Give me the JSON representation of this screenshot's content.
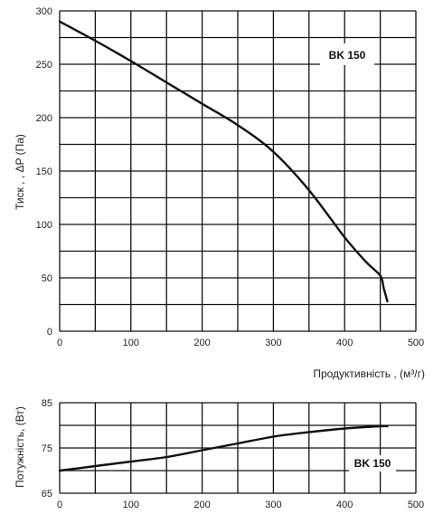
{
  "chart_data": [
    {
      "type": "line",
      "ylabel": "Тиск , , ΔP (Па)",
      "xlabel": "Продуктивність , (м³/г)",
      "xlim": [
        0,
        500
      ],
      "ylim": [
        0,
        300
      ],
      "xticks": [
        0,
        100,
        200,
        300,
        400,
        500
      ],
      "yticks": [
        0,
        50,
        100,
        150,
        200,
        250,
        300
      ],
      "x_grid_step": 50,
      "y_grid_step": 25,
      "grid": true,
      "series": [
        {
          "name": "BK 150",
          "x": [
            0,
            50,
            100,
            150,
            200,
            250,
            300,
            350,
            400,
            430,
            450,
            455,
            460
          ],
          "y": [
            290,
            272,
            253,
            233,
            213,
            193,
            168,
            132,
            88,
            65,
            52,
            40,
            28
          ]
        }
      ]
    },
    {
      "type": "line",
      "ylabel": "Потужність, (Вт)",
      "xlim": [
        0,
        500
      ],
      "ylim": [
        65,
        85
      ],
      "xticks": [
        0,
        100,
        200,
        300,
        400,
        500
      ],
      "yticks": [
        65,
        75,
        85
      ],
      "x_grid_step": 50,
      "y_grid_step": 5,
      "grid": true,
      "series": [
        {
          "name": "BK 150",
          "x": [
            0,
            50,
            100,
            150,
            200,
            250,
            300,
            350,
            400,
            450,
            460
          ],
          "y": [
            70,
            71,
            72,
            73,
            74.5,
            76,
            77.5,
            78.5,
            79.3,
            79.8,
            79.8
          ]
        }
      ]
    }
  ]
}
